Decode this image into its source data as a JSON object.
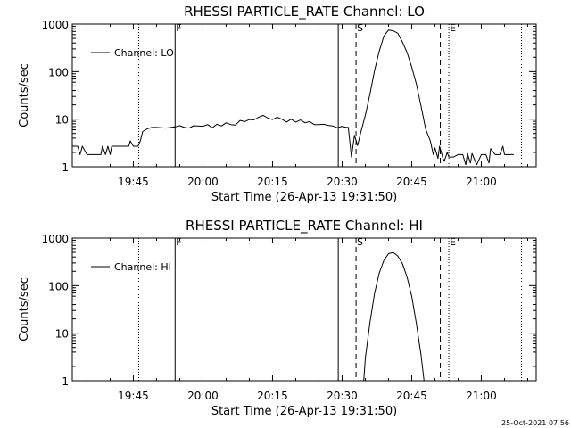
{
  "footer": {
    "timestamp": "25-Oct-2021 07:56"
  },
  "chart_data": [
    {
      "type": "line",
      "title": "RHESSI PARTICLE_RATE Channel: LO",
      "xlabel": "Start Time (26-Apr-13 19:31:50)",
      "ylabel": "Counts/sec",
      "yscale": "log",
      "ylim": [
        1,
        1000
      ],
      "xlim_minutes_after_start": [
        0,
        100
      ],
      "x_ticks": [
        "19:45",
        "20:00",
        "20:15",
        "20:30",
        "20:45",
        "21:00"
      ],
      "y_ticks": [
        "1",
        "10",
        "100",
        "1000"
      ],
      "legend": {
        "label": "Channel: LO",
        "placement": "top-left"
      },
      "markers": [
        {
          "style": "dotted",
          "label": "",
          "time": "19:46:10"
        },
        {
          "style": "solid",
          "label": "F",
          "time": "19:54:00"
        },
        {
          "style": "solid",
          "label": "",
          "time": "20:29:10"
        },
        {
          "style": "dashed",
          "label": "S",
          "time": "20:33:00"
        },
        {
          "style": "dashed",
          "label": "",
          "time": "20:51:10"
        },
        {
          "style": "dotted",
          "label": "E",
          "time": "20:53:00"
        },
        {
          "style": "dotted",
          "label": "",
          "time": "21:08:40"
        }
      ],
      "series": [
        {
          "x": [
            "19:31:50",
            "19:33:00",
            "19:33:30",
            "19:34:00",
            "19:35:00",
            "19:38:00",
            "19:38:20",
            "19:39:00",
            "19:39:30",
            "19:40:00",
            "19:40:20",
            "19:41:00",
            "19:42:00",
            "19:44:00",
            "19:44:20",
            "19:45:00",
            "19:46:00",
            "19:46:30",
            "19:47:00",
            "19:48:00",
            "19:49:00",
            "19:50:00",
            "19:52:00",
            "19:54:00",
            "19:55:00",
            "19:56:00",
            "19:57:00",
            "19:58:00",
            "20:00:00",
            "20:01:00",
            "20:02:00",
            "20:03:00",
            "20:04:00",
            "20:05:00",
            "20:06:00",
            "20:07:00",
            "20:08:00",
            "20:09:00",
            "20:10:00",
            "20:11:00",
            "20:12:00",
            "20:13:00",
            "20:14:00",
            "20:15:00",
            "20:16:00",
            "20:17:00",
            "20:18:00",
            "20:19:00",
            "20:20:00",
            "20:21:00",
            "20:22:00",
            "20:23:00",
            "20:24:00",
            "20:25:00",
            "20:26:00",
            "20:27:00",
            "20:28:00",
            "20:29:00",
            "20:30:00",
            "20:30:40",
            "20:31:20",
            "20:32:00",
            "20:32:40",
            "20:33:20",
            "20:34:00",
            "20:35:00",
            "20:36:00",
            "20:37:00",
            "20:38:00",
            "20:39:00",
            "20:40:00",
            "20:41:00",
            "20:42:00",
            "20:43:00",
            "20:44:00",
            "20:45:00",
            "20:46:00",
            "20:47:00",
            "20:48:00",
            "20:49:00",
            "20:49:40",
            "20:50:00",
            "20:50:40",
            "20:51:00",
            "20:51:40",
            "20:52:00",
            "20:52:40",
            "20:53:00",
            "20:54:00",
            "20:55:00",
            "20:56:00",
            "20:56:40",
            "20:57:00",
            "20:57:40",
            "20:58:00",
            "20:59:00",
            "21:00:00",
            "21:01:00",
            "21:01:40",
            "21:02:00",
            "21:03:00",
            "21:04:00",
            "21:04:40",
            "21:05:00",
            "21:06:00",
            "21:07:00"
          ],
          "values": [
            2.7,
            2.7,
            1.8,
            2.7,
            1.8,
            1.8,
            2.7,
            1.8,
            2.7,
            1.8,
            2.7,
            2.7,
            2.7,
            2.7,
            3.5,
            2.7,
            2.7,
            3.5,
            5.5,
            6.3,
            6.7,
            6.7,
            6.5,
            6.9,
            7.3,
            6.7,
            6.5,
            7.3,
            7.1,
            7.7,
            6.6,
            7.8,
            7.2,
            8.4,
            7.7,
            7.5,
            9.4,
            8.9,
            9.8,
            9.7,
            11,
            12,
            10.5,
            9.8,
            11,
            10,
            8.7,
            10,
            8.7,
            9.6,
            8.4,
            8.9,
            7.7,
            7.7,
            7.8,
            7.4,
            7.2,
            6.6,
            7.1,
            6.8,
            6.7,
            1.6,
            4.6,
            2.8,
            5.2,
            12,
            34,
            107,
            270,
            560,
            750,
            720,
            640,
            420,
            250,
            125,
            55,
            19,
            6.2,
            3.5,
            1.8,
            2.5,
            1.5,
            2.7,
            1.6,
            1.3,
            2,
            1.6,
            1.6,
            1.8,
            1.8,
            1.1,
            1.9,
            1.2,
            1.9,
            1.1,
            1.8,
            1.8,
            1.2,
            2.4,
            1.8,
            1.8,
            2.7,
            1.8,
            1.8,
            1.8
          ]
        }
      ]
    },
    {
      "type": "line",
      "title": "RHESSI PARTICLE_RATE Channel: HI",
      "xlabel": "Start Time (26-Apr-13 19:31:50)",
      "ylabel": "Counts/sec",
      "yscale": "log",
      "ylim": [
        1,
        1000
      ],
      "xlim_minutes_after_start": [
        0,
        100
      ],
      "x_ticks": [
        "19:45",
        "20:00",
        "20:15",
        "20:30",
        "20:45",
        "21:00"
      ],
      "y_ticks": [
        "1",
        "10",
        "100",
        "1000"
      ],
      "legend": {
        "label": "Channel: HI",
        "placement": "top-left"
      },
      "markers": [
        {
          "style": "dotted",
          "label": "",
          "time": "19:46:10"
        },
        {
          "style": "solid",
          "label": "F",
          "time": "19:54:00"
        },
        {
          "style": "solid",
          "label": "",
          "time": "20:29:10"
        },
        {
          "style": "dashed",
          "label": "S",
          "time": "20:33:00"
        },
        {
          "style": "dashed",
          "label": "",
          "time": "20:51:10"
        },
        {
          "style": "dotted",
          "label": "E",
          "time": "20:53:00"
        },
        {
          "style": "dotted",
          "label": "",
          "time": "21:08:40"
        }
      ],
      "series": [
        {
          "x": [
            "20:34:40",
            "20:35:00",
            "20:36:00",
            "20:37:00",
            "20:38:00",
            "20:39:00",
            "20:40:00",
            "20:41:00",
            "20:42:00",
            "20:43:00",
            "20:44:00",
            "20:45:00",
            "20:46:00",
            "20:47:00",
            "20:47:40"
          ],
          "values": [
            1,
            3,
            17,
            70,
            185,
            340,
            470,
            500,
            420,
            290,
            150,
            60,
            16,
            3.5,
            1
          ]
        }
      ]
    }
  ]
}
